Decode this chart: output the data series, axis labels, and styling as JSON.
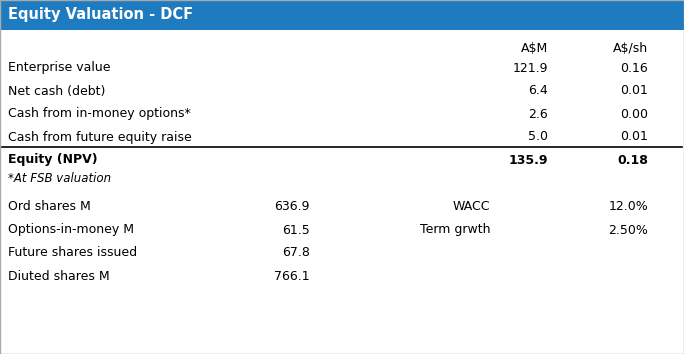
{
  "title": "Equity Valuation - DCF",
  "title_bg_color": "#1F7BBF",
  "title_text_color": "#FFFFFF",
  "header_col1": "A$M",
  "header_col2": "A$/sh",
  "rows": [
    {
      "label": "Enterprise value",
      "col1": "121.9",
      "col2": "0.16",
      "bold": false,
      "top_border": false
    },
    {
      "label": "Net cash (debt)",
      "col1": "6.4",
      "col2": "0.01",
      "bold": false,
      "top_border": false
    },
    {
      "label": "Cash from in-money options*",
      "col1": "2.6",
      "col2": "0.00",
      "bold": false,
      "top_border": false
    },
    {
      "label": "Cash from future equity raise",
      "col1": "5.0",
      "col2": "0.01",
      "bold": false,
      "top_border": false
    },
    {
      "label": "Equity (NPV)",
      "col1": "135.9",
      "col2": "0.18",
      "bold": true,
      "top_border": true
    }
  ],
  "footnote": "*At FSB valuation",
  "bottom_rows": [
    {
      "label": "Ord shares M",
      "val1": "636.9",
      "label2": "WACC",
      "val2": "12.0%"
    },
    {
      "label": "Options-in-money M",
      "val1": "61.5",
      "label2": "Term grwth",
      "val2": "2.50%"
    },
    {
      "label": "Future shares issued",
      "val1": "67.8",
      "label2": "",
      "val2": ""
    },
    {
      "label": "Diuted shares M",
      "val1": "766.1",
      "label2": "",
      "val2": ""
    }
  ],
  "bg_color": "#FFFFFF",
  "border_color": "#000000",
  "text_color": "#000000",
  "font_size": 9.0
}
